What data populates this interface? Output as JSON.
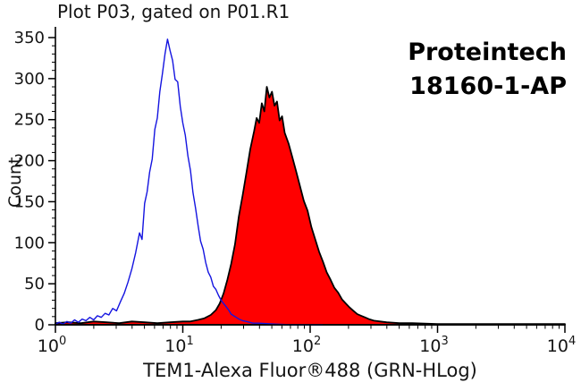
{
  "chart_data": {
    "type": "area",
    "title": "Plot P03, gated on P01.R1",
    "xlabel": "TEM1-Alexa Fluor®488 (GRN-HLog)",
    "ylabel": "Count",
    "x_scale": "log10",
    "x_range_log10": [
      0,
      4
    ],
    "ylim": [
      0,
      350
    ],
    "y_ticks": [
      0,
      50,
      100,
      150,
      200,
      250,
      300,
      350
    ],
    "x_ticks": [
      {
        "base": "10",
        "exp": "0"
      },
      {
        "base": "10",
        "exp": "1"
      },
      {
        "base": "10",
        "exp": "2"
      },
      {
        "base": "10",
        "exp": "3"
      },
      {
        "base": "10",
        "exp": "4"
      }
    ],
    "grid": false,
    "legend": "none",
    "annotation": {
      "line1": "Proteintech",
      "line2": "18160-1-AP"
    },
    "series": [
      {
        "name": "stained-filled-histogram",
        "stroke": "#000000",
        "fill": "#ff0000",
        "stroke_width": 1.8,
        "points_log10x_count": [
          [
            0.0,
            2
          ],
          [
            0.1,
            3
          ],
          [
            0.2,
            2
          ],
          [
            0.3,
            4
          ],
          [
            0.4,
            3
          ],
          [
            0.5,
            2
          ],
          [
            0.6,
            4
          ],
          [
            0.7,
            3
          ],
          [
            0.8,
            2
          ],
          [
            0.9,
            3
          ],
          [
            1.0,
            4
          ],
          [
            1.06,
            4
          ],
          [
            1.12,
            6
          ],
          [
            1.17,
            8
          ],
          [
            1.22,
            12
          ],
          [
            1.26,
            18
          ],
          [
            1.29,
            26
          ],
          [
            1.32,
            38
          ],
          [
            1.35,
            55
          ],
          [
            1.38,
            74
          ],
          [
            1.41,
            98
          ],
          [
            1.44,
            132
          ],
          [
            1.47,
            158
          ],
          [
            1.5,
            186
          ],
          [
            1.53,
            214
          ],
          [
            1.56,
            236
          ],
          [
            1.58,
            252
          ],
          [
            1.6,
            246
          ],
          [
            1.62,
            270
          ],
          [
            1.64,
            260
          ],
          [
            1.66,
            290
          ],
          [
            1.68,
            277
          ],
          [
            1.7,
            284
          ],
          [
            1.72,
            267
          ],
          [
            1.74,
            272
          ],
          [
            1.76,
            249
          ],
          [
            1.78,
            254
          ],
          [
            1.8,
            234
          ],
          [
            1.83,
            221
          ],
          [
            1.86,
            204
          ],
          [
            1.89,
            187
          ],
          [
            1.92,
            169
          ],
          [
            1.95,
            151
          ],
          [
            1.98,
            139
          ],
          [
            2.01,
            119
          ],
          [
            2.04,
            104
          ],
          [
            2.07,
            89
          ],
          [
            2.1,
            77
          ],
          [
            2.13,
            64
          ],
          [
            2.16,
            55
          ],
          [
            2.19,
            45
          ],
          [
            2.22,
            39
          ],
          [
            2.25,
            31
          ],
          [
            2.28,
            26
          ],
          [
            2.31,
            21
          ],
          [
            2.34,
            17
          ],
          [
            2.37,
            13
          ],
          [
            2.4,
            11
          ],
          [
            2.43,
            9
          ],
          [
            2.46,
            7
          ],
          [
            2.5,
            5
          ],
          [
            2.55,
            4
          ],
          [
            2.6,
            3
          ],
          [
            2.7,
            2
          ],
          [
            2.8,
            2
          ],
          [
            3.0,
            1
          ],
          [
            3.2,
            1
          ],
          [
            3.5,
            1
          ],
          [
            4.0,
            1
          ]
        ]
      },
      {
        "name": "control-open-histogram",
        "stroke": "#1414e0",
        "fill": "none",
        "stroke_width": 1.4,
        "points_log10x_count": [
          [
            0.0,
            1
          ],
          [
            0.03,
            3
          ],
          [
            0.06,
            1
          ],
          [
            0.09,
            4
          ],
          [
            0.12,
            2
          ],
          [
            0.15,
            6
          ],
          [
            0.18,
            3
          ],
          [
            0.21,
            7
          ],
          [
            0.24,
            5
          ],
          [
            0.27,
            9
          ],
          [
            0.3,
            6
          ],
          [
            0.33,
            11
          ],
          [
            0.36,
            9
          ],
          [
            0.39,
            14
          ],
          [
            0.42,
            12
          ],
          [
            0.45,
            20
          ],
          [
            0.48,
            17
          ],
          [
            0.51,
            28
          ],
          [
            0.54,
            38
          ],
          [
            0.57,
            52
          ],
          [
            0.6,
            68
          ],
          [
            0.63,
            88
          ],
          [
            0.66,
            112
          ],
          [
            0.68,
            104
          ],
          [
            0.7,
            148
          ],
          [
            0.72,
            162
          ],
          [
            0.74,
            186
          ],
          [
            0.76,
            202
          ],
          [
            0.78,
            238
          ],
          [
            0.8,
            252
          ],
          [
            0.82,
            284
          ],
          [
            0.84,
            306
          ],
          [
            0.86,
            330
          ],
          [
            0.88,
            348
          ],
          [
            0.9,
            334
          ],
          [
            0.92,
            322
          ],
          [
            0.94,
            299
          ],
          [
            0.96,
            296
          ],
          [
            0.98,
            266
          ],
          [
            1.0,
            246
          ],
          [
            1.02,
            231
          ],
          [
            1.04,
            206
          ],
          [
            1.06,
            188
          ],
          [
            1.08,
            161
          ],
          [
            1.1,
            142
          ],
          [
            1.12,
            121
          ],
          [
            1.14,
            102
          ],
          [
            1.16,
            92
          ],
          [
            1.18,
            76
          ],
          [
            1.2,
            64
          ],
          [
            1.22,
            58
          ],
          [
            1.24,
            47
          ],
          [
            1.26,
            43
          ],
          [
            1.28,
            36
          ],
          [
            1.3,
            30
          ],
          [
            1.32,
            26
          ],
          [
            1.34,
            22
          ],
          [
            1.36,
            18
          ],
          [
            1.38,
            13
          ],
          [
            1.41,
            10
          ],
          [
            1.44,
            7
          ],
          [
            1.47,
            5
          ],
          [
            1.5,
            4
          ],
          [
            1.55,
            2
          ],
          [
            1.6,
            2
          ],
          [
            1.7,
            1
          ],
          [
            1.85,
            0
          ],
          [
            2.1,
            0
          ]
        ]
      }
    ]
  }
}
